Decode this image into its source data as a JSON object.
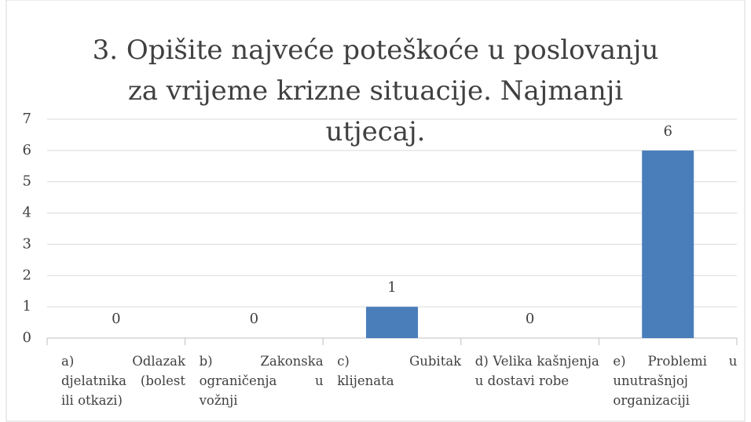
{
  "chart_data": {
    "type": "bar",
    "title": "3. Opišite najveće poteškoće u poslovanju za vrijeme krizne situacije. Najmanji utjecaj.",
    "categories": [
      "a) Odlazak djelatnika (bolest ili otkazi)",
      "b) Zakonska ograničenja u vožnji",
      "c) Gubitak klijenata",
      "d) Velika kašnjenja u dostavi robe",
      "e) Problemi u unutrašnjoj organizaciji"
    ],
    "values": [
      0,
      0,
      1,
      0,
      6
    ],
    "color": "#4a7ebb",
    "ylim": [
      0,
      7
    ],
    "yticks": [
      0,
      1,
      2,
      3,
      4,
      5,
      6,
      7
    ],
    "grid": true
  }
}
